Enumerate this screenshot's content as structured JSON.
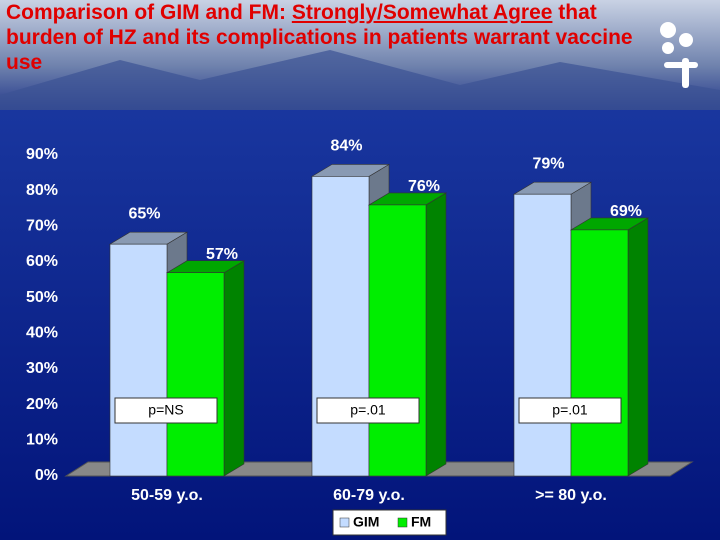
{
  "chart_data": {
    "type": "bar3d",
    "title": [
      "Comparison of GIM and FM:  ",
      "Strongly/Somewhat Agree",
      " that burden of HZ and its complications in patients warrant vaccine use"
    ],
    "categories": [
      "50-59 y.o.",
      "60-79 y.o.",
      ">= 80 y.o."
    ],
    "series": [
      {
        "name": "GIM",
        "color": "#c4dcff",
        "values": [
          65,
          84,
          79
        ],
        "value_labels": [
          "65%",
          "84%",
          "79%"
        ]
      },
      {
        "name": "FM",
        "color": "#00ee00",
        "values": [
          57,
          76,
          69
        ],
        "value_labels": [
          "57%",
          "76%",
          "69%"
        ]
      }
    ],
    "annotations": [
      "p=NS",
      "p=.01",
      "p=.01"
    ],
    "ylim": [
      0,
      90
    ],
    "yticks": [
      {
        "value": 0,
        "label": "0%"
      },
      {
        "value": 10,
        "label": "10%"
      },
      {
        "value": 20,
        "label": "20%"
      },
      {
        "value": 30,
        "label": "30%"
      },
      {
        "value": 40,
        "label": "40%"
      },
      {
        "value": 50,
        "label": "50%"
      },
      {
        "value": 60,
        "label": "60%"
      },
      {
        "value": 70,
        "label": "70%"
      },
      {
        "value": 80,
        "label": "80%"
      },
      {
        "value": 90,
        "label": "90%"
      }
    ],
    "grid": false,
    "legend": "bottom"
  }
}
